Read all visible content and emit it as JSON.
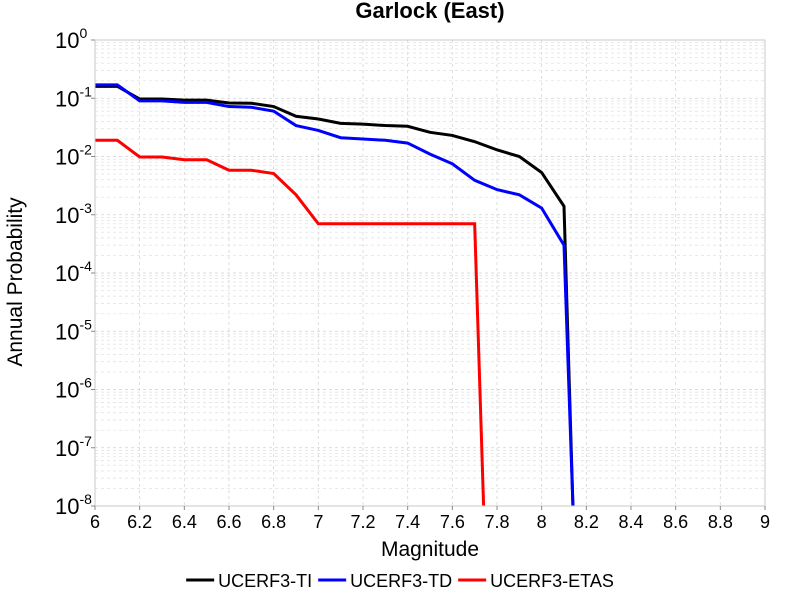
{
  "chart_data": {
    "type": "line",
    "title": "Garlock (East)",
    "xlabel": "Magnitude",
    "ylabel": "Annual Probability",
    "xlim": [
      6,
      9
    ],
    "ylim": [
      1e-08,
      1
    ],
    "yscale": "log",
    "grid": true,
    "legend_position": "bottom",
    "x_ticks": [
      "6",
      "6.2",
      "6.4",
      "6.6",
      "6.8",
      "7",
      "7.2",
      "7.4",
      "7.6",
      "7.8",
      "8",
      "8.2",
      "8.4",
      "8.6",
      "8.8",
      "9"
    ],
    "y_ticks": [
      {
        "base": "10",
        "exp": "0",
        "value": 1
      },
      {
        "base": "10",
        "exp": "-1",
        "value": 0.1
      },
      {
        "base": "10",
        "exp": "-2",
        "value": 0.01
      },
      {
        "base": "10",
        "exp": "-3",
        "value": 0.001
      },
      {
        "base": "10",
        "exp": "-4",
        "value": 0.0001
      },
      {
        "base": "10",
        "exp": "-5",
        "value": 1e-05
      },
      {
        "base": "10",
        "exp": "-6",
        "value": 1e-06
      },
      {
        "base": "10",
        "exp": "-7",
        "value": 1e-07
      },
      {
        "base": "10",
        "exp": "-8",
        "value": 1e-08
      }
    ],
    "series": [
      {
        "name": "UCERF3-TI",
        "color": "#000000",
        "x": [
          6.0,
          6.1,
          6.2,
          6.3,
          6.4,
          6.5,
          6.6,
          6.7,
          6.8,
          6.9,
          7.0,
          7.1,
          7.2,
          7.3,
          7.4,
          7.5,
          7.6,
          7.7,
          7.8,
          7.9,
          8.0,
          8.1,
          8.14
        ],
        "y": [
          0.16,
          0.16,
          0.097,
          0.097,
          0.093,
          0.093,
          0.083,
          0.082,
          0.072,
          0.049,
          0.044,
          0.037,
          0.036,
          0.034,
          0.033,
          0.026,
          0.023,
          0.018,
          0.013,
          0.01,
          0.0053,
          0.0014,
          1e-08
        ]
      },
      {
        "name": "UCERF3-TD",
        "color": "#0000ff",
        "x": [
          6.0,
          6.1,
          6.2,
          6.3,
          6.4,
          6.5,
          6.6,
          6.7,
          6.8,
          6.9,
          7.0,
          7.1,
          7.2,
          7.3,
          7.4,
          7.5,
          7.6,
          7.7,
          7.8,
          7.9,
          8.0,
          8.1,
          8.14
        ],
        "y": [
          0.17,
          0.17,
          0.09,
          0.09,
          0.085,
          0.085,
          0.072,
          0.07,
          0.06,
          0.034,
          0.028,
          0.021,
          0.02,
          0.019,
          0.017,
          0.011,
          0.0075,
          0.0039,
          0.0027,
          0.0022,
          0.0013,
          0.0003,
          1e-08
        ]
      },
      {
        "name": "UCERF3-ETAS",
        "color": "#ff0000",
        "x": [
          6.0,
          6.1,
          6.2,
          6.3,
          6.4,
          6.5,
          6.6,
          6.7,
          6.8,
          6.9,
          7.0,
          7.1,
          7.2,
          7.3,
          7.4,
          7.5,
          7.6,
          7.7,
          7.74
        ],
        "y": [
          0.019,
          0.019,
          0.0098,
          0.0098,
          0.0088,
          0.0088,
          0.0058,
          0.0058,
          0.0051,
          0.0022,
          0.0007,
          0.0007,
          0.0007,
          0.0007,
          0.0007,
          0.0007,
          0.0007,
          0.0007,
          1e-08
        ]
      }
    ]
  }
}
